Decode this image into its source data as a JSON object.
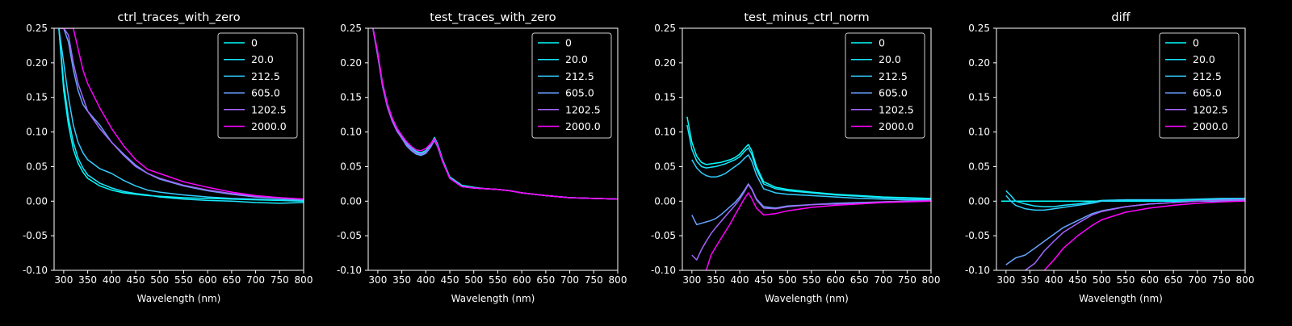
{
  "figure": {
    "background": "#000000",
    "foreground": "#ffffff"
  },
  "series_colors": [
    "#00ffff",
    "#19e6ff",
    "#33ccff",
    "#66a3ff",
    "#a366ff",
    "#ff00ff"
  ],
  "chart_data": [
    {
      "type": "line",
      "title": "ctrl_traces_with_zero",
      "xlabel": "Wavelength (nm)",
      "ylabel": "",
      "xlim": [
        280,
        800
      ],
      "ylim": [
        -0.1,
        0.25
      ],
      "xticks": [
        300,
        350,
        400,
        450,
        500,
        550,
        600,
        650,
        700,
        750,
        800
      ],
      "yticks": [
        -0.1,
        -0.05,
        0.0,
        0.05,
        0.1,
        0.15,
        0.2,
        0.25
      ],
      "grid": false,
      "legend": "top-right",
      "x": [
        290,
        300,
        310,
        320,
        330,
        340,
        350,
        375,
        400,
        425,
        450,
        475,
        500,
        550,
        600,
        650,
        700,
        750,
        800
      ],
      "series": [
        {
          "name": "0",
          "values": [
            0.25,
            0.16,
            0.11,
            0.075,
            0.055,
            0.042,
            0.033,
            0.022,
            0.016,
            0.012,
            0.01,
            0.008,
            0.007,
            0.005,
            0.004,
            0.003,
            0.002,
            0.001,
            0.0
          ]
        },
        {
          "name": "20.0",
          "values": [
            0.25,
            0.17,
            0.12,
            0.085,
            0.062,
            0.048,
            0.038,
            0.026,
            0.019,
            0.014,
            0.011,
            0.009,
            0.006,
            0.003,
            0.001,
            0.0,
            -0.002,
            -0.003,
            -0.002
          ]
        },
        {
          "name": "212.5",
          "values": [
            0.25,
            0.2,
            0.15,
            0.11,
            0.085,
            0.07,
            0.06,
            0.047,
            0.04,
            0.03,
            0.022,
            0.016,
            0.013,
            0.009,
            0.006,
            0.004,
            0.003,
            0.002,
            0.001
          ]
        },
        {
          "name": "605.0",
          "values": [
            0.25,
            0.25,
            0.23,
            0.19,
            0.16,
            0.14,
            0.13,
            0.11,
            0.085,
            0.068,
            0.052,
            0.04,
            0.032,
            0.022,
            0.015,
            0.01,
            0.006,
            0.004,
            0.002
          ]
        },
        {
          "name": "1202.5",
          "values": [
            0.25,
            0.25,
            0.24,
            0.2,
            0.17,
            0.15,
            0.13,
            0.105,
            0.085,
            0.066,
            0.05,
            0.04,
            0.033,
            0.023,
            0.016,
            0.011,
            0.007,
            0.005,
            0.003
          ]
        },
        {
          "name": "2000.0",
          "values": [
            0.25,
            0.25,
            0.25,
            0.25,
            0.22,
            0.19,
            0.17,
            0.135,
            0.105,
            0.08,
            0.06,
            0.046,
            0.04,
            0.028,
            0.02,
            0.013,
            0.008,
            0.005,
            0.003
          ]
        }
      ]
    },
    {
      "type": "line",
      "title": "test_traces_with_zero",
      "xlabel": "Wavelength (nm)",
      "ylabel": "",
      "xlim": [
        280,
        800
      ],
      "ylim": [
        -0.1,
        0.25
      ],
      "xticks": [
        300,
        350,
        400,
        450,
        500,
        550,
        600,
        650,
        700,
        750,
        800
      ],
      "yticks": [
        -0.1,
        -0.05,
        0.0,
        0.05,
        0.1,
        0.15,
        0.2,
        0.25
      ],
      "grid": false,
      "legend": "top-right",
      "x": [
        290,
        300,
        310,
        320,
        330,
        340,
        350,
        360,
        370,
        380,
        390,
        400,
        410,
        418,
        425,
        435,
        450,
        475,
        500,
        525,
        550,
        575,
        600,
        650,
        700,
        750,
        800
      ],
      "series": [
        {
          "name": "0",
          "values": [
            0.25,
            0.21,
            0.17,
            0.14,
            0.12,
            0.105,
            0.095,
            0.085,
            0.078,
            0.072,
            0.07,
            0.073,
            0.082,
            0.092,
            0.082,
            0.06,
            0.035,
            0.023,
            0.02,
            0.018,
            0.017,
            0.015,
            0.012,
            0.008,
            0.005,
            0.004,
            0.003
          ]
        },
        {
          "name": "20.0",
          "values": [
            0.25,
            0.21,
            0.17,
            0.14,
            0.12,
            0.105,
            0.095,
            0.084,
            0.077,
            0.071,
            0.069,
            0.072,
            0.081,
            0.091,
            0.081,
            0.059,
            0.034,
            0.022,
            0.019,
            0.018,
            0.017,
            0.015,
            0.012,
            0.008,
            0.005,
            0.004,
            0.003
          ]
        },
        {
          "name": "212.5",
          "values": [
            0.25,
            0.21,
            0.168,
            0.138,
            0.118,
            0.103,
            0.093,
            0.082,
            0.075,
            0.069,
            0.067,
            0.07,
            0.079,
            0.089,
            0.079,
            0.058,
            0.034,
            0.022,
            0.019,
            0.018,
            0.017,
            0.015,
            0.012,
            0.008,
            0.005,
            0.004,
            0.003
          ]
        },
        {
          "name": "605.0",
          "values": [
            0.25,
            0.21,
            0.166,
            0.136,
            0.116,
            0.101,
            0.091,
            0.08,
            0.073,
            0.068,
            0.066,
            0.069,
            0.078,
            0.088,
            0.078,
            0.057,
            0.033,
            0.021,
            0.019,
            0.018,
            0.017,
            0.015,
            0.012,
            0.008,
            0.005,
            0.004,
            0.003
          ]
        },
        {
          "name": "1202.5",
          "values": [
            0.25,
            0.21,
            0.166,
            0.136,
            0.116,
            0.101,
            0.092,
            0.082,
            0.075,
            0.07,
            0.068,
            0.071,
            0.08,
            0.089,
            0.079,
            0.058,
            0.033,
            0.021,
            0.019,
            0.018,
            0.017,
            0.015,
            0.012,
            0.008,
            0.005,
            0.004,
            0.003
          ]
        },
        {
          "name": "2000.0",
          "values": [
            0.25,
            0.215,
            0.17,
            0.14,
            0.12,
            0.105,
            0.095,
            0.086,
            0.079,
            0.074,
            0.073,
            0.076,
            0.083,
            0.09,
            0.08,
            0.058,
            0.033,
            0.021,
            0.019,
            0.018,
            0.017,
            0.015,
            0.012,
            0.008,
            0.005,
            0.004,
            0.003
          ]
        }
      ]
    },
    {
      "type": "line",
      "title": "test_minus_ctrl_norm",
      "xlabel": "Wavelength (nm)",
      "ylabel": "",
      "xlim": [
        280,
        800
      ],
      "ylim": [
        -0.1,
        0.25
      ],
      "xticks": [
        300,
        350,
        400,
        450,
        500,
        550,
        600,
        650,
        700,
        750,
        800
      ],
      "yticks": [
        -0.1,
        -0.05,
        0.0,
        0.05,
        0.1,
        0.15,
        0.2,
        0.25
      ],
      "grid": false,
      "legend": "top-right",
      "x": [
        290,
        300,
        310,
        320,
        330,
        340,
        350,
        360,
        370,
        380,
        390,
        400,
        410,
        418,
        425,
        435,
        450,
        475,
        500,
        550,
        600,
        650,
        700,
        750,
        800
      ],
      "series": [
        {
          "name": "0",
          "values": [
            0.122,
            0.085,
            0.065,
            0.056,
            0.053,
            0.054,
            0.055,
            0.056,
            0.058,
            0.06,
            0.063,
            0.068,
            0.076,
            0.082,
            0.073,
            0.05,
            0.028,
            0.02,
            0.017,
            0.013,
            0.01,
            0.008,
            0.006,
            0.005,
            0.004
          ]
        },
        {
          "name": "20.0",
          "values": [
            0.11,
            0.075,
            0.058,
            0.05,
            0.048,
            0.049,
            0.05,
            0.052,
            0.054,
            0.057,
            0.06,
            0.064,
            0.072,
            0.077,
            0.068,
            0.046,
            0.025,
            0.018,
            0.015,
            0.012,
            0.009,
            0.007,
            0.005,
            0.004,
            0.003
          ]
        },
        {
          "name": "212.5",
          "values": [
            null,
            0.06,
            0.048,
            0.041,
            0.037,
            0.035,
            0.035,
            0.037,
            0.04,
            0.045,
            0.05,
            0.055,
            0.062,
            0.067,
            0.058,
            0.038,
            0.018,
            0.012,
            0.01,
            0.008,
            0.006,
            0.004,
            0.003,
            0.002,
            0.002
          ]
        },
        {
          "name": "605.0",
          "values": [
            null,
            -0.02,
            -0.034,
            -0.032,
            -0.03,
            -0.028,
            -0.025,
            -0.02,
            -0.014,
            -0.008,
            -0.002,
            0.006,
            0.016,
            0.025,
            0.018,
            0.003,
            -0.008,
            -0.01,
            -0.007,
            -0.005,
            -0.003,
            -0.002,
            -0.001,
            0.0,
            0.001
          ]
        },
        {
          "name": "1202.5",
          "values": [
            null,
            -0.078,
            -0.085,
            -0.07,
            -0.058,
            -0.047,
            -0.038,
            -0.03,
            -0.022,
            -0.014,
            -0.006,
            0.003,
            0.014,
            0.024,
            0.017,
            0.002,
            -0.01,
            -0.011,
            -0.008,
            -0.005,
            -0.004,
            -0.003,
            -0.001,
            0.0,
            0.001
          ]
        },
        {
          "name": "2000.0",
          "values": [
            null,
            null,
            null,
            null,
            -0.1,
            -0.078,
            -0.066,
            -0.055,
            -0.044,
            -0.033,
            -0.02,
            -0.008,
            0.004,
            0.012,
            0.004,
            -0.01,
            -0.02,
            -0.018,
            -0.014,
            -0.009,
            -0.006,
            -0.004,
            -0.002,
            -0.001,
            0.0
          ]
        }
      ]
    },
    {
      "type": "line",
      "title": "diff",
      "xlabel": "Wavelength (nm)",
      "ylabel": "",
      "xlim": [
        280,
        800
      ],
      "ylim": [
        -0.1,
        0.25
      ],
      "xticks": [
        300,
        350,
        400,
        450,
        500,
        550,
        600,
        650,
        700,
        750,
        800
      ],
      "yticks": [
        -0.1,
        -0.05,
        0.0,
        0.05,
        0.1,
        0.15,
        0.2,
        0.25
      ],
      "grid": false,
      "legend": "top-right",
      "x": [
        290,
        300,
        310,
        320,
        340,
        360,
        380,
        400,
        420,
        450,
        480,
        500,
        550,
        600,
        650,
        700,
        750,
        800
      ],
      "series": [
        {
          "name": "0",
          "values": [
            0,
            0,
            0,
            0,
            0,
            0,
            0,
            0,
            0,
            0,
            0,
            0,
            0,
            0,
            0,
            0,
            0,
            0
          ]
        },
        {
          "name": "20.0",
          "values": [
            null,
            0.015,
            0.008,
            0.0,
            -0.004,
            -0.007,
            -0.008,
            -0.008,
            -0.006,
            -0.004,
            -0.001,
            0.001,
            0.002,
            0.002,
            0.002,
            0.002,
            0.003,
            0.003
          ]
        },
        {
          "name": "212.5",
          "values": [
            null,
            0.008,
            0.0,
            -0.006,
            -0.011,
            -0.013,
            -0.013,
            -0.011,
            -0.009,
            -0.006,
            -0.003,
            0.0,
            0.002,
            0.002,
            0.002,
            0.003,
            0.004,
            0.004
          ]
        },
        {
          "name": "605.0",
          "values": [
            null,
            -0.092,
            -0.087,
            -0.082,
            -0.078,
            -0.068,
            -0.058,
            -0.048,
            -0.038,
            -0.028,
            -0.018,
            -0.014,
            -0.008,
            -0.004,
            -0.002,
            0.0,
            0.002,
            0.002
          ]
        },
        {
          "name": "1202.5",
          "values": [
            null,
            null,
            null,
            null,
            -0.1,
            -0.09,
            -0.072,
            -0.058,
            -0.045,
            -0.032,
            -0.02,
            -0.015,
            -0.008,
            -0.004,
            -0.002,
            0.0,
            0.001,
            0.002
          ]
        },
        {
          "name": "2000.0",
          "values": [
            null,
            null,
            null,
            null,
            null,
            null,
            -0.1,
            -0.085,
            -0.068,
            -0.05,
            -0.035,
            -0.027,
            -0.016,
            -0.01,
            -0.006,
            -0.003,
            -0.001,
            0.0
          ]
        }
      ]
    }
  ]
}
